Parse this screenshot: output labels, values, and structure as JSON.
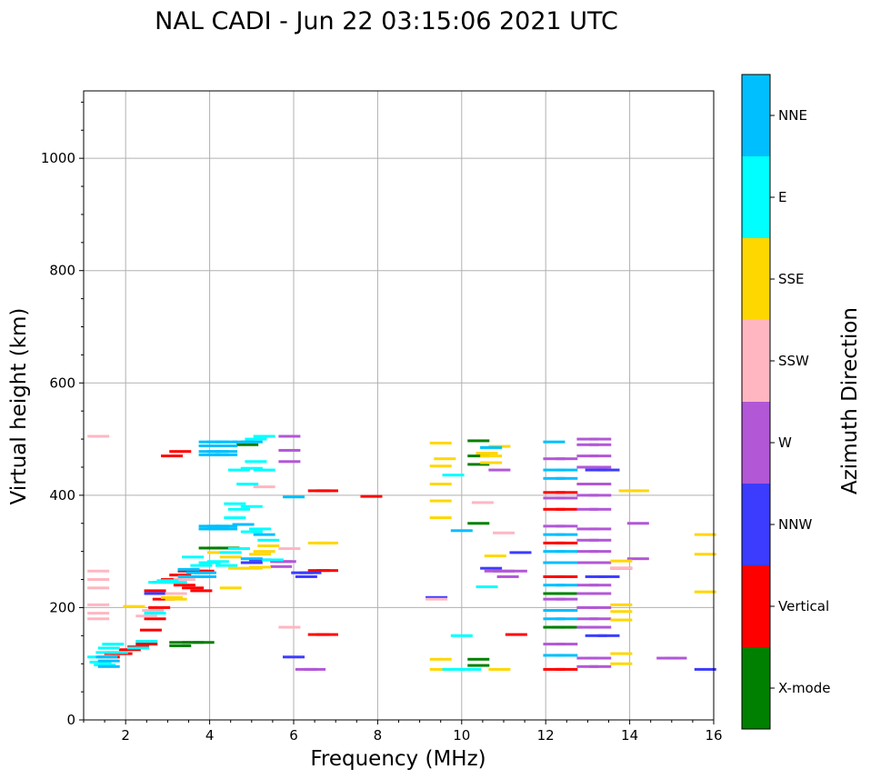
{
  "chart_data": {
    "type": "scatter",
    "title": "NAL CADI - Jun 22 03:15:06 2021 UTC",
    "xlabel": "Frequency (MHz)",
    "ylabel": "Virtual height (km)",
    "xlim": [
      1,
      16
    ],
    "ylim": [
      0,
      1120
    ],
    "xticks": [
      2,
      4,
      6,
      8,
      10,
      12,
      14,
      16
    ],
    "yticks": [
      0,
      200,
      400,
      600,
      800,
      1000
    ],
    "grid": true,
    "colorbar": {
      "label": "Azimuth Direction",
      "categories": [
        {
          "name": "X-mode",
          "color": "#008000"
        },
        {
          "name": "Vertical",
          "color": "#ff0000"
        },
        {
          "name": "NNW",
          "color": "#3c3cff"
        },
        {
          "name": "W",
          "color": "#b257d6"
        },
        {
          "name": "SSW",
          "color": "#ffb6c1"
        },
        {
          "name": "SSE",
          "color": "#ffd700"
        },
        {
          "name": "E",
          "color": "#00ffff"
        },
        {
          "name": "NNE",
          "color": "#00bfff"
        }
      ]
    },
    "series": [
      {
        "name": "X-mode",
        "points": [
          [
            3.3,
            138
          ],
          [
            3.6,
            138
          ],
          [
            3.85,
            138
          ],
          [
            3.3,
            132
          ],
          [
            4.0,
            306
          ],
          [
            4.2,
            306
          ],
          [
            4.45,
            306
          ],
          [
            10.4,
            497
          ],
          [
            10.4,
            470
          ],
          [
            10.4,
            455
          ],
          [
            10.4,
            350
          ],
          [
            10.4,
            108
          ],
          [
            10.4,
            97
          ],
          [
            12.2,
            165
          ],
          [
            12.4,
            165
          ],
          [
            12.6,
            165
          ],
          [
            12.2,
            225
          ],
          [
            12.5,
            225
          ],
          [
            12.2,
            280
          ],
          [
            12.5,
            280
          ],
          [
            4.9,
            490
          ]
        ]
      },
      {
        "name": "Vertical",
        "points": [
          [
            1.6,
            112
          ],
          [
            1.75,
            118
          ],
          [
            1.9,
            118
          ],
          [
            2.1,
            125
          ],
          [
            2.3,
            130
          ],
          [
            2.5,
            135
          ],
          [
            2.6,
            160
          ],
          [
            2.7,
            180
          ],
          [
            2.8,
            200
          ],
          [
            2.9,
            215
          ],
          [
            2.7,
            230
          ],
          [
            2.9,
            245
          ],
          [
            3.1,
            250
          ],
          [
            3.3,
            258
          ],
          [
            3.5,
            265
          ],
          [
            3.7,
            265
          ],
          [
            3.85,
            265
          ],
          [
            3.4,
            240
          ],
          [
            3.6,
            235
          ],
          [
            3.8,
            230
          ],
          [
            3.1,
            470
          ],
          [
            3.3,
            478
          ],
          [
            6.6,
            408
          ],
          [
            6.8,
            408
          ],
          [
            6.6,
            266
          ],
          [
            6.8,
            266
          ],
          [
            6.6,
            152
          ],
          [
            6.8,
            152
          ],
          [
            7.85,
            398
          ],
          [
            11.3,
            152
          ],
          [
            12.2,
            90
          ],
          [
            12.5,
            90
          ],
          [
            12.2,
            255
          ],
          [
            12.5,
            255
          ],
          [
            12.2,
            315
          ],
          [
            12.5,
            315
          ],
          [
            12.2,
            375
          ],
          [
            12.5,
            375
          ],
          [
            12.2,
            405
          ],
          [
            12.5,
            405
          ],
          [
            13.8,
            270
          ]
        ]
      },
      {
        "name": "NNW",
        "points": [
          [
            2.7,
            225
          ],
          [
            5.0,
            280
          ],
          [
            5.2,
            285
          ],
          [
            6.2,
            262
          ],
          [
            6.4,
            262
          ],
          [
            6.3,
            255
          ],
          [
            9.4,
            218
          ],
          [
            10.7,
            270
          ],
          [
            11.4,
            298
          ],
          [
            13.2,
            255
          ],
          [
            13.5,
            255
          ],
          [
            13.2,
            150
          ],
          [
            13.5,
            150
          ],
          [
            13.2,
            445
          ],
          [
            13.5,
            445
          ],
          [
            15.8,
            90
          ],
          [
            6.0,
            112
          ]
        ]
      },
      {
        "name": "W",
        "points": [
          [
            5.7,
            282
          ],
          [
            5.8,
            282
          ],
          [
            5.7,
            273
          ],
          [
            5.9,
            505
          ],
          [
            5.9,
            480
          ],
          [
            5.9,
            460
          ],
          [
            6.3,
            90
          ],
          [
            6.5,
            90
          ],
          [
            10.8,
            265
          ],
          [
            11.0,
            265
          ],
          [
            11.1,
            255
          ],
          [
            11.3,
            265
          ],
          [
            10.9,
            445
          ],
          [
            12.2,
            395
          ],
          [
            12.5,
            395
          ],
          [
            12.2,
            465
          ],
          [
            12.5,
            465
          ],
          [
            12.2,
            345
          ],
          [
            12.5,
            345
          ],
          [
            12.2,
            215
          ],
          [
            12.5,
            215
          ],
          [
            12.2,
            135
          ],
          [
            12.5,
            135
          ],
          [
            13.0,
            500
          ],
          [
            13.3,
            500
          ],
          [
            13.0,
            490
          ],
          [
            13.3,
            490
          ],
          [
            13.0,
            470
          ],
          [
            13.3,
            470
          ],
          [
            13.0,
            450
          ],
          [
            13.3,
            450
          ],
          [
            13.0,
            420
          ],
          [
            13.3,
            420
          ],
          [
            13.0,
            400
          ],
          [
            13.3,
            400
          ],
          [
            13.0,
            375
          ],
          [
            13.3,
            375
          ],
          [
            13.0,
            340
          ],
          [
            13.3,
            340
          ],
          [
            13.0,
            320
          ],
          [
            13.3,
            320
          ],
          [
            13.0,
            300
          ],
          [
            13.3,
            300
          ],
          [
            13.0,
            280
          ],
          [
            13.3,
            280
          ],
          [
            13.0,
            240
          ],
          [
            13.3,
            240
          ],
          [
            13.0,
            225
          ],
          [
            13.3,
            225
          ],
          [
            13.0,
            200
          ],
          [
            13.3,
            200
          ],
          [
            13.0,
            180
          ],
          [
            13.3,
            180
          ],
          [
            13.0,
            165
          ],
          [
            13.3,
            165
          ],
          [
            13.0,
            110
          ],
          [
            13.3,
            110
          ],
          [
            13.0,
            95
          ],
          [
            13.3,
            95
          ],
          [
            14.2,
            350
          ],
          [
            14.2,
            287
          ],
          [
            14.9,
            110
          ],
          [
            15.1,
            110
          ]
        ]
      },
      {
        "name": "SSW",
        "points": [
          [
            1.35,
            505
          ],
          [
            1.35,
            265
          ],
          [
            1.35,
            250
          ],
          [
            1.35,
            235
          ],
          [
            1.35,
            205
          ],
          [
            1.35,
            190
          ],
          [
            1.35,
            180
          ],
          [
            2.5,
            185
          ],
          [
            2.65,
            195
          ],
          [
            3.2,
            225
          ],
          [
            3.4,
            250
          ],
          [
            5.9,
            305
          ],
          [
            5.9,
            165
          ],
          [
            10.5,
            387
          ],
          [
            11.0,
            333
          ],
          [
            13.8,
            270
          ],
          [
            5.3,
            415
          ],
          [
            9.4,
            215
          ]
        ]
      },
      {
        "name": "SSE",
        "points": [
          [
            2.2,
            202
          ],
          [
            3.1,
            218
          ],
          [
            3.2,
            215
          ],
          [
            4.2,
            298
          ],
          [
            4.5,
            290
          ],
          [
            4.7,
            270
          ],
          [
            5.0,
            270
          ],
          [
            5.2,
            272
          ],
          [
            5.3,
            300
          ],
          [
            5.4,
            310
          ],
          [
            5.2,
            295
          ],
          [
            4.5,
            235
          ],
          [
            6.6,
            315
          ],
          [
            6.8,
            315
          ],
          [
            9.5,
            493
          ],
          [
            9.5,
            452
          ],
          [
            9.6,
            465
          ],
          [
            9.5,
            420
          ],
          [
            9.5,
            390
          ],
          [
            9.5,
            360
          ],
          [
            9.5,
            108
          ],
          [
            9.5,
            90
          ],
          [
            10.6,
            475
          ],
          [
            10.7,
            470
          ],
          [
            10.7,
            458
          ],
          [
            10.9,
            487
          ],
          [
            10.8,
            292
          ],
          [
            10.9,
            90
          ],
          [
            13.8,
            283
          ],
          [
            13.8,
            205
          ],
          [
            13.8,
            193
          ],
          [
            13.8,
            178
          ],
          [
            13.8,
            118
          ],
          [
            13.8,
            100
          ],
          [
            14.0,
            408
          ],
          [
            14.2,
            408
          ],
          [
            15.8,
            330
          ],
          [
            15.8,
            295
          ],
          [
            15.8,
            228
          ]
        ]
      },
      {
        "name": "E",
        "points": [
          [
            1.35,
            112
          ],
          [
            1.4,
            103
          ],
          [
            1.5,
            98
          ],
          [
            1.55,
            120
          ],
          [
            1.6,
            128
          ],
          [
            1.7,
            135
          ],
          [
            1.8,
            120
          ],
          [
            2.3,
            128
          ],
          [
            2.5,
            140
          ],
          [
            2.7,
            190
          ],
          [
            2.8,
            245
          ],
          [
            3.0,
            248
          ],
          [
            3.2,
            245
          ],
          [
            3.5,
            255
          ],
          [
            3.6,
            290
          ],
          [
            3.8,
            275
          ],
          [
            4.0,
            280
          ],
          [
            4.2,
            282
          ],
          [
            4.4,
            275
          ],
          [
            4.5,
            298
          ],
          [
            4.7,
            305
          ],
          [
            4.6,
            360
          ],
          [
            4.7,
            375
          ],
          [
            4.6,
            385
          ],
          [
            4.9,
            420
          ],
          [
            5.0,
            448
          ],
          [
            5.1,
            460
          ],
          [
            4.7,
            445
          ],
          [
            5.3,
            445
          ],
          [
            5.1,
            500
          ],
          [
            5.3,
            505
          ],
          [
            5.4,
            320
          ],
          [
            5.5,
            285
          ],
          [
            5.0,
            335
          ],
          [
            5.2,
            340
          ],
          [
            5.0,
            380
          ],
          [
            10.0,
            150
          ],
          [
            9.8,
            90
          ],
          [
            10.2,
            90
          ],
          [
            9.8,
            436
          ],
          [
            10.6,
            237
          ],
          [
            10.7,
            485
          ]
        ]
      },
      {
        "name": "NNE",
        "points": [
          [
            1.55,
            112
          ],
          [
            1.6,
            105
          ],
          [
            1.6,
            95
          ],
          [
            3.5,
            268
          ],
          [
            3.7,
            262
          ],
          [
            3.9,
            262
          ],
          [
            3.5,
            255
          ],
          [
            3.7,
            255
          ],
          [
            3.9,
            255
          ],
          [
            4.0,
            345
          ],
          [
            4.2,
            345
          ],
          [
            4.4,
            345
          ],
          [
            4.0,
            340
          ],
          [
            4.2,
            340
          ],
          [
            4.4,
            340
          ],
          [
            4.0,
            495
          ],
          [
            4.2,
            495
          ],
          [
            4.4,
            495
          ],
          [
            4.0,
            488
          ],
          [
            4.2,
            488
          ],
          [
            4.4,
            488
          ],
          [
            4.0,
            478
          ],
          [
            4.2,
            478
          ],
          [
            4.4,
            478
          ],
          [
            4.0,
            472
          ],
          [
            4.2,
            472
          ],
          [
            4.4,
            472
          ],
          [
            4.8,
            495
          ],
          [
            5.0,
            495
          ],
          [
            4.8,
            348
          ],
          [
            5.3,
            330
          ],
          [
            5.0,
            287
          ],
          [
            6.0,
            397
          ],
          [
            10.0,
            337
          ],
          [
            10.7,
            485
          ],
          [
            12.2,
            495
          ],
          [
            12.2,
            445
          ],
          [
            12.5,
            445
          ],
          [
            12.2,
            430
          ],
          [
            12.5,
            430
          ],
          [
            12.2,
            330
          ],
          [
            12.5,
            330
          ],
          [
            12.2,
            300
          ],
          [
            12.5,
            300
          ],
          [
            12.2,
            240
          ],
          [
            12.5,
            240
          ],
          [
            12.2,
            195
          ],
          [
            12.5,
            195
          ],
          [
            12.2,
            115
          ],
          [
            12.5,
            115
          ],
          [
            12.2,
            180
          ],
          [
            12.5,
            180
          ],
          [
            12.2,
            280
          ],
          [
            12.5,
            280
          ]
        ]
      }
    ]
  }
}
